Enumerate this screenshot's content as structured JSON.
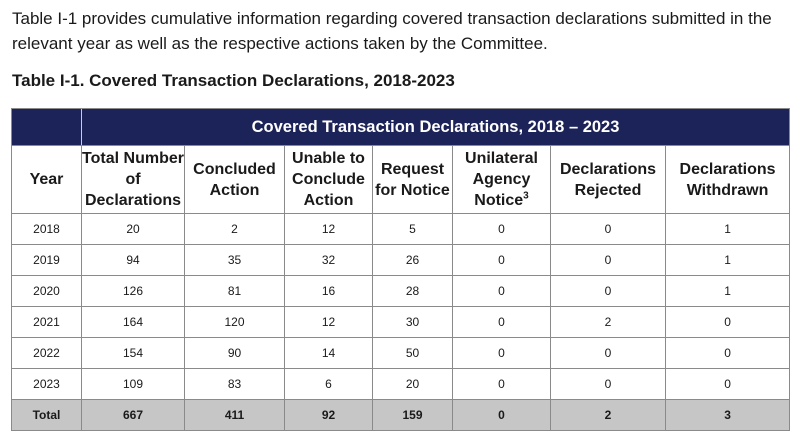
{
  "intro_text": "Table I-1 provides cumulative information regarding covered transaction declarations submitted in the relevant year as well as the respective actions taken by the Committee.",
  "caption": "Table I-1. Covered Transaction Declarations, 2018-2023",
  "table": {
    "banner": "Covered Transaction Declarations, 2018 – 2023",
    "headers": [
      {
        "text": "Year"
      },
      {
        "text": "Total Number of Declarations"
      },
      {
        "text": "Concluded Action"
      },
      {
        "text": "Unable to Conclude Action"
      },
      {
        "text": "Request for Notice"
      },
      {
        "text": "Unilateral Agency Notice",
        "footnote": "3"
      },
      {
        "text": "Declarations Rejected"
      },
      {
        "text": "Declarations Withdrawn"
      }
    ],
    "rows": [
      [
        "2018",
        "20",
        "2",
        "12",
        "5",
        "0",
        "0",
        "1"
      ],
      [
        "2019",
        "94",
        "35",
        "32",
        "26",
        "0",
        "0",
        "1"
      ],
      [
        "2020",
        "126",
        "81",
        "16",
        "28",
        "0",
        "0",
        "1"
      ],
      [
        "2021",
        "164",
        "120",
        "12",
        "30",
        "0",
        "2",
        "0"
      ],
      [
        "2022",
        "154",
        "90",
        "14",
        "50",
        "0",
        "0",
        "0"
      ],
      [
        "2023",
        "109",
        "83",
        "6",
        "20",
        "0",
        "0",
        "0"
      ]
    ],
    "total": [
      "Total",
      "667",
      "411",
      "92",
      "159",
      "0",
      "2",
      "3"
    ]
  },
  "colors": {
    "banner_background": "#1c2358",
    "banner_text": "#ffffff",
    "total_row_background": "#c6c6c6"
  }
}
